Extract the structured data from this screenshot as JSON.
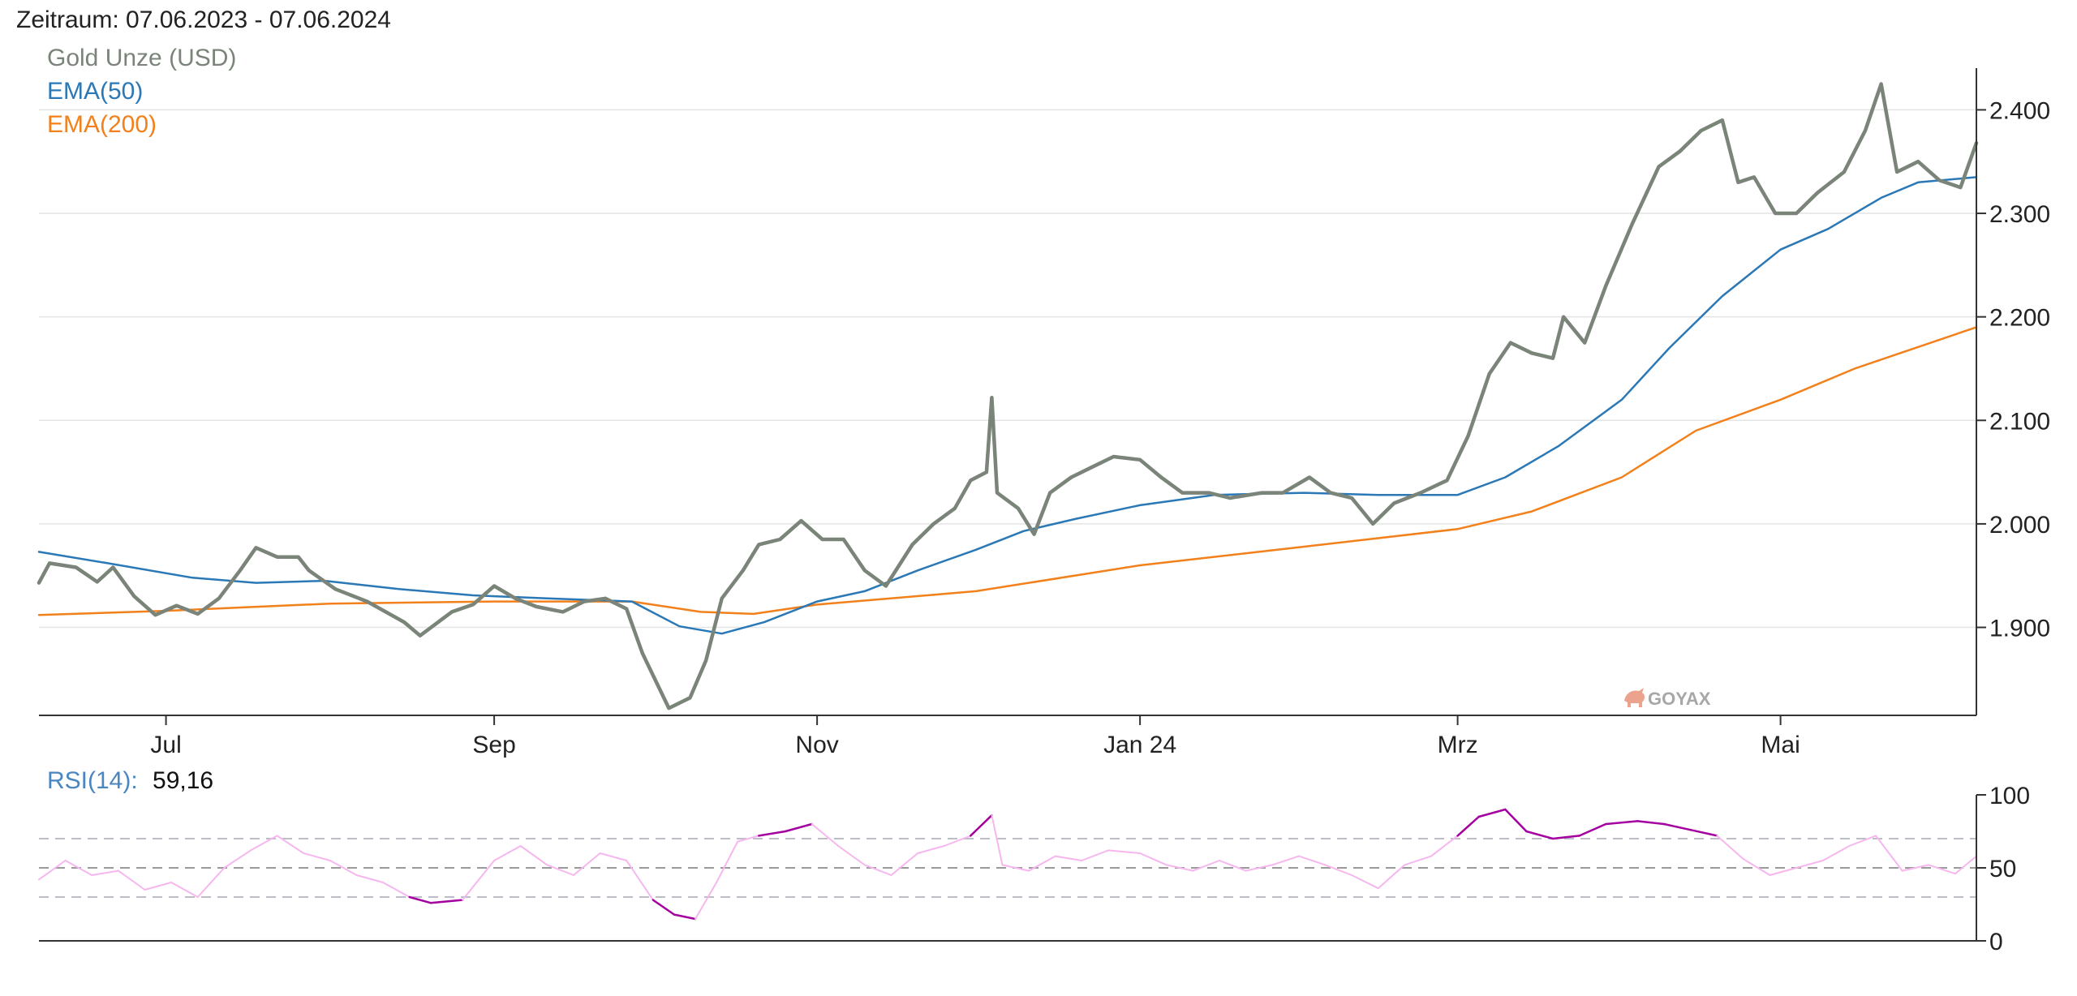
{
  "header": {
    "period": "Zeitraum: 07.06.2023 - 07.06.2024"
  },
  "watermark": {
    "text": "GOYAX",
    "icon": "bull-icon",
    "color": "#e8937a"
  },
  "chart_data": [
    {
      "type": "line",
      "x_start": "2023-06-07",
      "x_end": "2024-06-07",
      "x_ticks": [
        {
          "date": "2023-07-01",
          "label": "Jul"
        },
        {
          "date": "2023-09-01",
          "label": "Sep"
        },
        {
          "date": "2023-11-01",
          "label": "Nov"
        },
        {
          "date": "2024-01-01",
          "label": "Jan 24"
        },
        {
          "date": "2024-03-01",
          "label": "Mrz"
        },
        {
          "date": "2024-05-01",
          "label": "Mai"
        }
      ],
      "ylim": [
        1815,
        2445
      ],
      "y_ticks": [
        {
          "value": 1900,
          "label": "1.900"
        },
        {
          "value": 2000,
          "label": "2.000"
        },
        {
          "value": 2100,
          "label": "2.100"
        },
        {
          "value": 2200,
          "label": "2.200"
        },
        {
          "value": 2300,
          "label": "2.300"
        },
        {
          "value": 2400,
          "label": "2.400"
        }
      ],
      "grid": true,
      "legend_position": "top-left",
      "series": [
        {
          "name": "Gold Unze (USD)",
          "color": "#7a8479",
          "points": [
            [
              "2023-06-07",
              1943
            ],
            [
              "2023-06-09",
              1962
            ],
            [
              "2023-06-14",
              1958
            ],
            [
              "2023-06-18",
              1944
            ],
            [
              "2023-06-21",
              1958
            ],
            [
              "2023-06-25",
              1930
            ],
            [
              "2023-06-29",
              1912
            ],
            [
              "2023-07-03",
              1921
            ],
            [
              "2023-07-07",
              1913
            ],
            [
              "2023-07-11",
              1928
            ],
            [
              "2023-07-15",
              1955
            ],
            [
              "2023-07-18",
              1977
            ],
            [
              "2023-07-22",
              1968
            ],
            [
              "2023-07-26",
              1968
            ],
            [
              "2023-07-28",
              1955
            ],
            [
              "2023-08-02",
              1937
            ],
            [
              "2023-08-08",
              1925
            ],
            [
              "2023-08-15",
              1905
            ],
            [
              "2023-08-18",
              1892
            ],
            [
              "2023-08-24",
              1915
            ],
            [
              "2023-08-28",
              1922
            ],
            [
              "2023-09-01",
              1940
            ],
            [
              "2023-09-05",
              1928
            ],
            [
              "2023-09-09",
              1920
            ],
            [
              "2023-09-14",
              1915
            ],
            [
              "2023-09-18",
              1925
            ],
            [
              "2023-09-22",
              1928
            ],
            [
              "2023-09-26",
              1918
            ],
            [
              "2023-09-29",
              1875
            ],
            [
              "2023-10-04",
              1822
            ],
            [
              "2023-10-08",
              1832
            ],
            [
              "2023-10-11",
              1868
            ],
            [
              "2023-10-14",
              1928
            ],
            [
              "2023-10-18",
              1955
            ],
            [
              "2023-10-21",
              1980
            ],
            [
              "2023-10-25",
              1985
            ],
            [
              "2023-10-29",
              2003
            ],
            [
              "2023-11-02",
              1985
            ],
            [
              "2023-11-06",
              1985
            ],
            [
              "2023-11-10",
              1955
            ],
            [
              "2023-11-14",
              1940
            ],
            [
              "2023-11-19",
              1980
            ],
            [
              "2023-11-23",
              2000
            ],
            [
              "2023-11-27",
              2015
            ],
            [
              "2023-11-30",
              2042
            ],
            [
              "2023-12-03",
              2050
            ],
            [
              "2023-12-04",
              2122
            ],
            [
              "2023-12-05",
              2030
            ],
            [
              "2023-12-09",
              2015
            ],
            [
              "2023-12-12",
              1990
            ],
            [
              "2023-12-15",
              2030
            ],
            [
              "2023-12-19",
              2045
            ],
            [
              "2023-12-23",
              2055
            ],
            [
              "2023-12-27",
              2065
            ],
            [
              "2024-01-01",
              2062
            ],
            [
              "2024-01-05",
              2045
            ],
            [
              "2024-01-09",
              2030
            ],
            [
              "2024-01-14",
              2030
            ],
            [
              "2024-01-18",
              2025
            ],
            [
              "2024-01-24",
              2030
            ],
            [
              "2024-01-28",
              2030
            ],
            [
              "2024-02-02",
              2045
            ],
            [
              "2024-02-06",
              2030
            ],
            [
              "2024-02-10",
              2025
            ],
            [
              "2024-02-14",
              2000
            ],
            [
              "2024-02-18",
              2020
            ],
            [
              "2024-02-23",
              2030
            ],
            [
              "2024-02-28",
              2042
            ],
            [
              "2024-03-03",
              2085
            ],
            [
              "2024-03-07",
              2145
            ],
            [
              "2024-03-11",
              2175
            ],
            [
              "2024-03-15",
              2165
            ],
            [
              "2024-03-19",
              2160
            ],
            [
              "2024-03-21",
              2200
            ],
            [
              "2024-03-25",
              2175
            ],
            [
              "2024-03-29",
              2230
            ],
            [
              "2024-04-03",
              2290
            ],
            [
              "2024-04-08",
              2345
            ],
            [
              "2024-04-12",
              2360
            ],
            [
              "2024-04-16",
              2380
            ],
            [
              "2024-04-20",
              2390
            ],
            [
              "2024-04-23",
              2330
            ],
            [
              "2024-04-26",
              2335
            ],
            [
              "2024-04-30",
              2300
            ],
            [
              "2024-05-04",
              2300
            ],
            [
              "2024-05-08",
              2320
            ],
            [
              "2024-05-13",
              2340
            ],
            [
              "2024-05-17",
              2380
            ],
            [
              "2024-05-20",
              2425
            ],
            [
              "2024-05-23",
              2340
            ],
            [
              "2024-05-27",
              2350
            ],
            [
              "2024-05-31",
              2332
            ],
            [
              "2024-06-04",
              2325
            ],
            [
              "2024-06-07",
              2368
            ]
          ]
        },
        {
          "name": "EMA(50)",
          "color": "#2a78b6",
          "points": [
            [
              "2023-06-07",
              1973
            ],
            [
              "2023-06-20",
              1962
            ],
            [
              "2023-07-06",
              1948
            ],
            [
              "2023-07-18",
              1943
            ],
            [
              "2023-07-31",
              1945
            ],
            [
              "2023-08-14",
              1937
            ],
            [
              "2023-08-28",
              1931
            ],
            [
              "2023-09-11",
              1928
            ],
            [
              "2023-09-27",
              1925
            ],
            [
              "2023-10-06",
              1901
            ],
            [
              "2023-10-14",
              1894
            ],
            [
              "2023-10-22",
              1905
            ],
            [
              "2023-11-01",
              1925
            ],
            [
              "2023-11-10",
              1935
            ],
            [
              "2023-11-20",
              1955
            ],
            [
              "2023-12-01",
              1975
            ],
            [
              "2023-12-10",
              1993
            ],
            [
              "2023-12-20",
              2005
            ],
            [
              "2024-01-01",
              2018
            ],
            [
              "2024-01-15",
              2028
            ],
            [
              "2024-02-01",
              2030
            ],
            [
              "2024-02-15",
              2028
            ],
            [
              "2024-03-01",
              2028
            ],
            [
              "2024-03-10",
              2045
            ],
            [
              "2024-03-20",
              2075
            ],
            [
              "2024-04-01",
              2120
            ],
            [
              "2024-04-10",
              2170
            ],
            [
              "2024-04-20",
              2220
            ],
            [
              "2024-05-01",
              2265
            ],
            [
              "2024-05-10",
              2285
            ],
            [
              "2024-05-20",
              2315
            ],
            [
              "2024-05-27",
              2330
            ],
            [
              "2024-06-07",
              2335
            ]
          ]
        },
        {
          "name": "EMA(200)",
          "color": "#f2801b",
          "points": [
            [
              "2023-06-07",
              1912
            ],
            [
              "2023-07-01",
              1916
            ],
            [
              "2023-08-01",
              1923
            ],
            [
              "2023-09-01",
              1925
            ],
            [
              "2023-09-27",
              1925
            ],
            [
              "2023-10-10",
              1915
            ],
            [
              "2023-10-20",
              1913
            ],
            [
              "2023-11-01",
              1922
            ],
            [
              "2023-12-01",
              1935
            ],
            [
              "2024-01-01",
              1960
            ],
            [
              "2024-02-01",
              1978
            ],
            [
              "2024-03-01",
              1995
            ],
            [
              "2024-03-15",
              2012
            ],
            [
              "2024-04-01",
              2045
            ],
            [
              "2024-04-15",
              2090
            ],
            [
              "2024-05-01",
              2120
            ],
            [
              "2024-05-15",
              2150
            ],
            [
              "2024-06-07",
              2190
            ]
          ]
        }
      ]
    },
    {
      "type": "line",
      "title": "RSI(14):",
      "current_value": "59,16",
      "title_color": "#4a86c0",
      "ylim": [
        0,
        100
      ],
      "y_ticks": [
        {
          "value": 0,
          "label": "0"
        },
        {
          "value": 50,
          "label": "50"
        },
        {
          "value": 100,
          "label": "100"
        }
      ],
      "reference_lines": [
        30,
        50,
        70
      ],
      "overbought": 70,
      "oversold": 30,
      "series": [
        {
          "name": "RSI",
          "color_normal": "#f6b6ee",
          "color_extreme": "#a400a0",
          "points": [
            [
              "2023-06-07",
              42
            ],
            [
              "2023-06-12",
              55
            ],
            [
              "2023-06-17",
              45
            ],
            [
              "2023-06-22",
              48
            ],
            [
              "2023-06-27",
              35
            ],
            [
              "2023-07-02",
              40
            ],
            [
              "2023-07-07",
              30
            ],
            [
              "2023-07-12",
              50
            ],
            [
              "2023-07-17",
              62
            ],
            [
              "2023-07-22",
              72
            ],
            [
              "2023-07-27",
              60
            ],
            [
              "2023-08-01",
              55
            ],
            [
              "2023-08-06",
              45
            ],
            [
              "2023-08-11",
              40
            ],
            [
              "2023-08-16",
              30
            ],
            [
              "2023-08-20",
              26
            ],
            [
              "2023-08-26",
              28
            ],
            [
              "2023-09-01",
              55
            ],
            [
              "2023-09-06",
              65
            ],
            [
              "2023-09-11",
              52
            ],
            [
              "2023-09-16",
              45
            ],
            [
              "2023-09-21",
              60
            ],
            [
              "2023-09-26",
              55
            ],
            [
              "2023-10-01",
              28
            ],
            [
              "2023-10-05",
              18
            ],
            [
              "2023-10-09",
              15
            ],
            [
              "2023-10-13",
              40
            ],
            [
              "2023-10-17",
              68
            ],
            [
              "2023-10-21",
              72
            ],
            [
              "2023-10-26",
              75
            ],
            [
              "2023-10-31",
              80
            ],
            [
              "2023-11-05",
              65
            ],
            [
              "2023-11-10",
              52
            ],
            [
              "2023-11-15",
              45
            ],
            [
              "2023-11-20",
              60
            ],
            [
              "2023-11-25",
              65
            ],
            [
              "2023-11-30",
              72
            ],
            [
              "2023-12-04",
              86
            ],
            [
              "2023-12-06",
              52
            ],
            [
              "2023-12-11",
              48
            ],
            [
              "2023-12-16",
              58
            ],
            [
              "2023-12-21",
              55
            ],
            [
              "2023-12-26",
              62
            ],
            [
              "2024-01-01",
              60
            ],
            [
              "2024-01-06",
              52
            ],
            [
              "2024-01-11",
              48
            ],
            [
              "2024-01-16",
              55
            ],
            [
              "2024-01-21",
              48
            ],
            [
              "2024-01-26",
              52
            ],
            [
              "2024-01-31",
              58
            ],
            [
              "2024-02-05",
              52
            ],
            [
              "2024-02-10",
              45
            ],
            [
              "2024-02-15",
              36
            ],
            [
              "2024-02-20",
              52
            ],
            [
              "2024-02-25",
              58
            ],
            [
              "2024-03-01",
              72
            ],
            [
              "2024-03-05",
              85
            ],
            [
              "2024-03-10",
              90
            ],
            [
              "2024-03-14",
              75
            ],
            [
              "2024-03-19",
              70
            ],
            [
              "2024-03-24",
              72
            ],
            [
              "2024-03-29",
              80
            ],
            [
              "2024-04-04",
              82
            ],
            [
              "2024-04-09",
              80
            ],
            [
              "2024-04-14",
              76
            ],
            [
              "2024-04-19",
              72
            ],
            [
              "2024-04-24",
              56
            ],
            [
              "2024-04-29",
              45
            ],
            [
              "2024-05-04",
              50
            ],
            [
              "2024-05-09",
              55
            ],
            [
              "2024-05-14",
              65
            ],
            [
              "2024-05-19",
              72
            ],
            [
              "2024-05-24",
              48
            ],
            [
              "2024-05-29",
              52
            ],
            [
              "2024-06-03",
              46
            ],
            [
              "2024-06-07",
              58
            ]
          ]
        }
      ]
    }
  ]
}
